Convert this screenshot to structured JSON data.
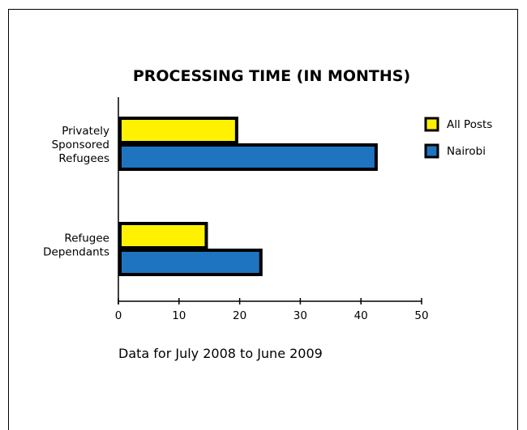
{
  "chart_data": {
    "type": "bar",
    "orientation": "horizontal",
    "title": "PROCESSING TIME (IN MONTHS)",
    "categories": [
      [
        "Privately",
        "Sponsored",
        "Refugees"
      ],
      [
        "Refugee",
        "Dependants"
      ]
    ],
    "series": [
      {
        "name": "All Posts",
        "values": [
          19.5,
          14.5
        ],
        "color": "#FFF200"
      },
      {
        "name": "Nairobi",
        "values": [
          42.5,
          23.5
        ],
        "color": "#1F74C0"
      }
    ],
    "xlim": [
      0,
      50
    ],
    "xticks": [
      0,
      10,
      20,
      30,
      40,
      50
    ],
    "xlabel": "",
    "ylabel": "",
    "grid": false,
    "legend": "top-right",
    "note": "Data for July 2008 to June 2009"
  }
}
